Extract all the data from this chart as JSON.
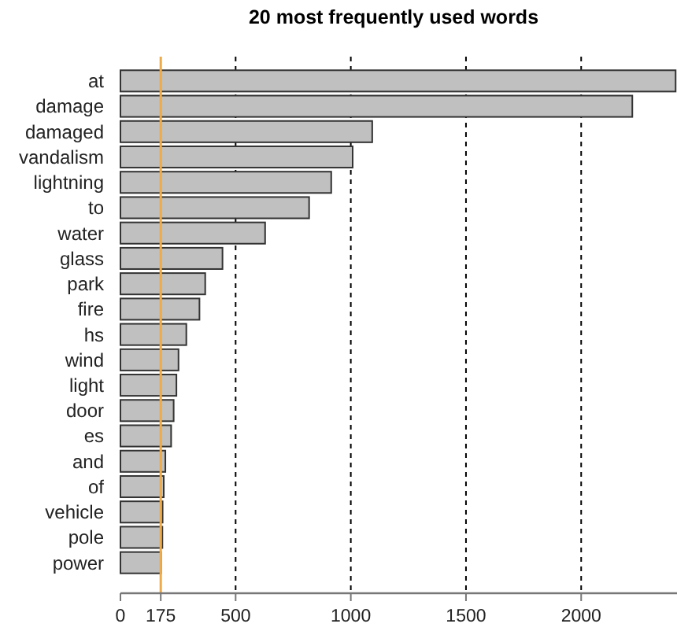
{
  "chart_data": {
    "type": "bar",
    "orientation": "horizontal",
    "title": "20 most frequently used words",
    "categories": [
      "at",
      "damage",
      "damaged",
      "vandalism",
      "lightning",
      "to",
      "water",
      "glass",
      "park",
      "fire",
      "hs",
      "wind",
      "light",
      "door",
      "es",
      "and",
      "of",
      "vehicle",
      "pole",
      "power"
    ],
    "values": [
      2410,
      2222,
      1093,
      1008,
      915,
      819,
      628,
      443,
      368,
      343,
      286,
      252,
      243,
      231,
      220,
      195,
      188,
      183,
      182,
      176
    ],
    "color": "#bfc0bf",
    "xlim": [
      0,
      2416
    ],
    "xticks": [
      0,
      175,
      500,
      1000,
      1500,
      2000
    ],
    "ref_lines": [
      {
        "axis": "x",
        "value": 175,
        "color": "#efaa4a",
        "line_style": "solid"
      },
      {
        "axis": "x",
        "value": 500,
        "color": "#000000",
        "line_style": "dashed"
      },
      {
        "axis": "x",
        "value": 1000,
        "color": "#000000",
        "line_style": "dashed"
      },
      {
        "axis": "x",
        "value": 1500,
        "color": "#000000",
        "line_style": "dashed"
      },
      {
        "axis": "x",
        "value": 2000,
        "color": "#000000",
        "line_style": "dashed"
      }
    ]
  }
}
